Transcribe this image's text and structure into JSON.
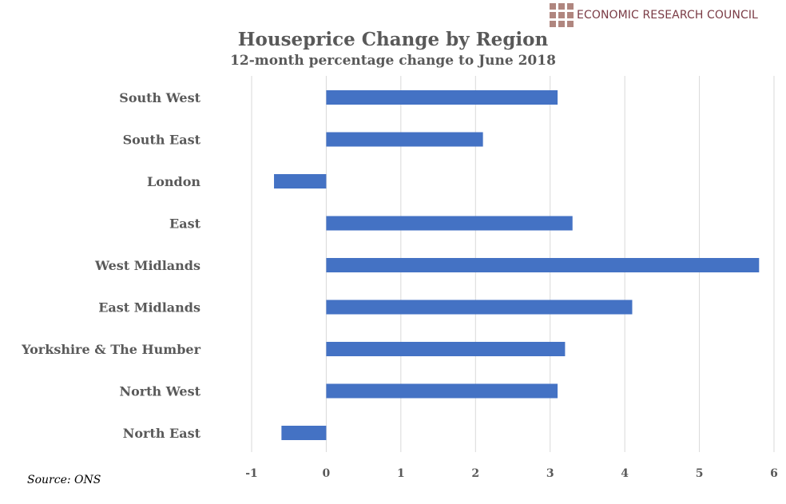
{
  "brand": {
    "name": "ECONOMIC RESEARCH COUNCIL",
    "color": "#7a3b45",
    "mark_color": "#b0867f"
  },
  "source": "Source: ONS",
  "chart_data": {
    "type": "bar",
    "orientation": "horizontal",
    "title": "Houseprice Change by Region",
    "subtitle": "12-month percentage change to June 2018",
    "categories": [
      "South West",
      "South East",
      "London",
      "East",
      "West Midlands",
      "East Midlands",
      "Yorkshire & The Humber",
      "North West",
      "North East"
    ],
    "values": [
      3.1,
      2.1,
      -0.7,
      3.3,
      5.8,
      4.1,
      3.2,
      3.1,
      -0.6
    ],
    "xlim": [
      -1,
      6
    ],
    "xticks": [
      "-1",
      "0",
      "1",
      "2",
      "3",
      "4",
      "5",
      "6"
    ],
    "xlabel": "",
    "ylabel": "",
    "grid": "vertical",
    "bar_color": "#4472c4",
    "grid_color": "#d9d9d9"
  }
}
